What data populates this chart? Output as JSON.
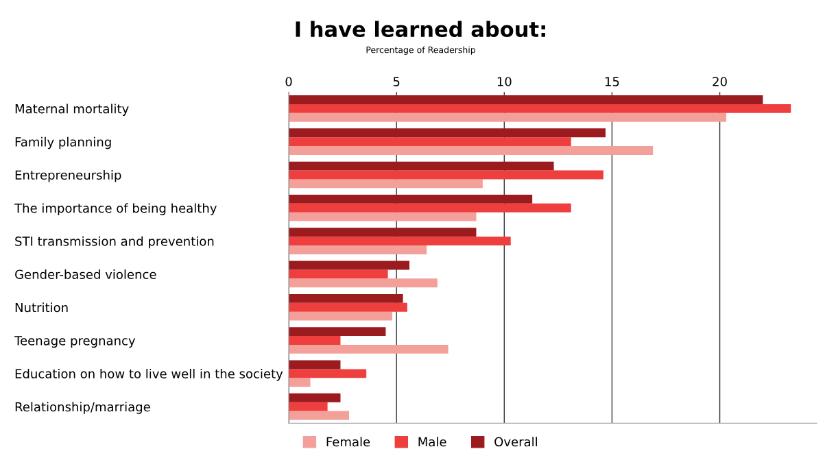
{
  "chart_data": {
    "type": "bar",
    "orientation": "horizontal",
    "title": "I have learned about:",
    "subtitle": "Percentage of Readership",
    "categories": [
      "Maternal mortality",
      "Family planning",
      "Entrepreneurship",
      "The importance of being healthy",
      "STI transmission and prevention",
      "Gender-based violence",
      "Nutrition",
      "Teenage pregnancy",
      "Education on how to live well in the society",
      "Relationship/marriage"
    ],
    "series": [
      {
        "name": "Female",
        "color": "#f4a09a",
        "values": [
          20.3,
          16.9,
          9.0,
          8.7,
          6.4,
          6.9,
          4.8,
          7.4,
          1.0,
          2.8
        ]
      },
      {
        "name": "Male",
        "color": "#ee3e3e",
        "values": [
          23.3,
          13.1,
          14.6,
          13.1,
          10.3,
          4.6,
          5.5,
          2.4,
          3.6,
          1.8
        ]
      },
      {
        "name": "Overall",
        "color": "#9b1b1f",
        "values": [
          22.0,
          14.7,
          12.3,
          11.3,
          8.7,
          5.6,
          5.3,
          4.5,
          2.4,
          2.4
        ]
      }
    ],
    "xlim": [
      0,
      24.5
    ],
    "xticks": [
      0,
      5,
      10,
      15,
      20
    ],
    "grid": "x",
    "legend": "bottom"
  }
}
